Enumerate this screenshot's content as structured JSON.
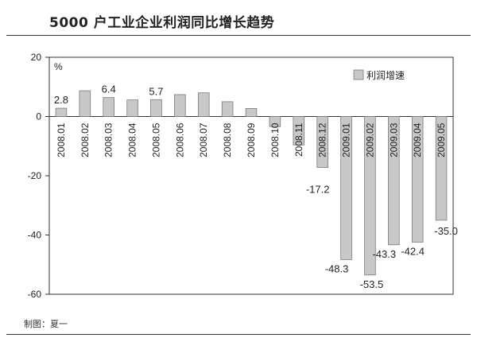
{
  "header": {
    "title": "5000 户工业企业利润同比增长趋势"
  },
  "footer": {
    "credit": "制图：夏一"
  },
  "chart_data": {
    "type": "bar",
    "title": "5000 户工业企业利润同比增长趋势",
    "ylabel": "%",
    "xlabel": "",
    "ylim": [
      -60,
      20
    ],
    "yticks": [
      20,
      0,
      -20,
      -40,
      -60
    ],
    "grid": false,
    "legend": "top-right",
    "categories": [
      "2008.01",
      "2008.02",
      "2008.03",
      "2008.04",
      "2008.05",
      "2008.06",
      "2008.07",
      "2008.08",
      "2008.09",
      "2008.10",
      "2008.11",
      "2008.12",
      "2009.01",
      "2009.02",
      "2009.03",
      "2009.04",
      "2009.05"
    ],
    "series": [
      {
        "name": "利润增速",
        "values": [
          2.8,
          8.7,
          6.4,
          5.6,
          5.7,
          7.4,
          8.0,
          5.0,
          2.7,
          -3.4,
          -9.6,
          -17.2,
          -48.3,
          -53.5,
          -43.3,
          -42.4,
          -35.0
        ],
        "labels": [
          "2.8",
          "",
          "6.4",
          "",
          "5.7",
          "",
          "",
          "",
          "",
          "",
          "",
          "-17.2",
          "-48.3",
          "-53.5",
          "-43.3",
          "-42.4",
          "-35.0"
        ]
      }
    ],
    "colors": {
      "bar_fill": "#c8c8c8",
      "bar_stroke": "#7a7a7a",
      "axis": "#333333"
    }
  }
}
